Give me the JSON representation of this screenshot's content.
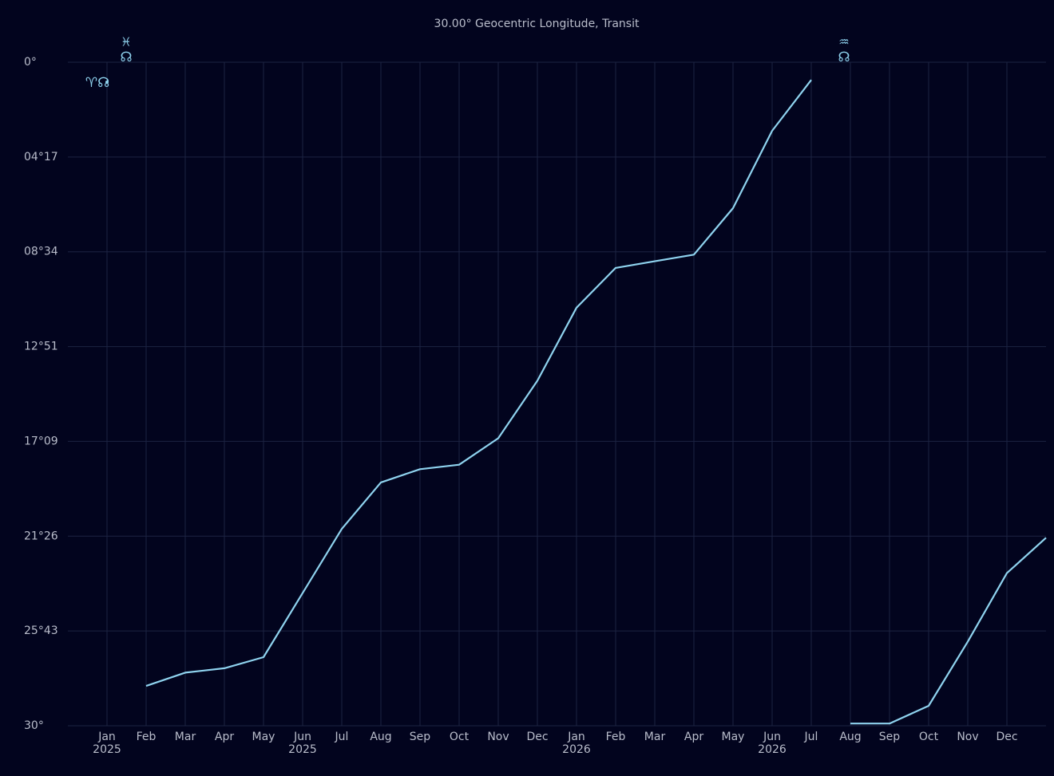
{
  "chart_data": {
    "type": "line",
    "title": "30.00° Geocentric Longitude,  Transit",
    "color": "#8fd3ef",
    "grid": true,
    "yinvert": true,
    "xlim": [
      "2024-12",
      "2027-01"
    ],
    "ylim": [
      0,
      30
    ],
    "yticks": [
      {
        "value": 0,
        "label": "0°"
      },
      {
        "value": 4.2857,
        "label": "04°17"
      },
      {
        "value": 8.5714,
        "label": "08°34"
      },
      {
        "value": 12.8571,
        "label": "12°51"
      },
      {
        "value": 17.1429,
        "label": "17°09"
      },
      {
        "value": 21.4286,
        "label": "21°26"
      },
      {
        "value": 25.7143,
        "label": "25°43"
      },
      {
        "value": 30,
        "label": "30°"
      }
    ],
    "xticks": [
      {
        "value": "2025-01",
        "label": "Jan",
        "year": "2025"
      },
      {
        "value": "2025-02",
        "label": "Feb"
      },
      {
        "value": "2025-03",
        "label": "Mar"
      },
      {
        "value": "2025-04",
        "label": "Apr"
      },
      {
        "value": "2025-05",
        "label": "May"
      },
      {
        "value": "2025-06",
        "label": "Jun",
        "year": "2025"
      },
      {
        "value": "2025-07",
        "label": "Jul"
      },
      {
        "value": "2025-08",
        "label": "Aug"
      },
      {
        "value": "2025-09",
        "label": "Sep"
      },
      {
        "value": "2025-10",
        "label": "Oct"
      },
      {
        "value": "2025-11",
        "label": "Nov"
      },
      {
        "value": "2025-12",
        "label": "Dec"
      },
      {
        "value": "2026-01",
        "label": "Jan",
        "year": "2026"
      },
      {
        "value": "2026-02",
        "label": "Feb"
      },
      {
        "value": "2026-03",
        "label": "Mar"
      },
      {
        "value": "2026-04",
        "label": "Apr"
      },
      {
        "value": "2026-05",
        "label": "May"
      },
      {
        "value": "2026-06",
        "label": "Jun",
        "year": "2026"
      },
      {
        "value": "2026-07",
        "label": "Jul"
      },
      {
        "value": "2026-08",
        "label": "Aug"
      },
      {
        "value": "2026-09",
        "label": "Sep"
      },
      {
        "value": "2026-10",
        "label": "Oct"
      },
      {
        "value": "2026-11",
        "label": "Nov"
      },
      {
        "value": "2026-12",
        "label": "Dec"
      }
    ],
    "series": [
      {
        "x": [
          "2025-01"
        ],
        "values": [
          0.9
        ]
      },
      {
        "x": [
          "2025-02",
          "2025-03",
          "2025-04",
          "2025-05",
          "2025-06",
          "2025-07",
          "2025-08",
          "2025-09",
          "2025-10",
          "2025-11",
          "2025-12",
          "2026-01",
          "2026-02",
          "2026-03",
          "2026-04",
          "2026-05",
          "2026-06",
          "2026-07"
        ],
        "values": [
          28.2,
          27.6,
          27.4,
          26.9,
          24.0,
          21.1,
          19.0,
          18.4,
          18.2,
          17.0,
          14.4,
          11.1,
          9.3,
          9.0,
          8.7,
          6.6,
          3.1,
          0.8
        ]
      },
      {
        "x": [
          "2026-08",
          "2026-09",
          "2026-10",
          "2026-11",
          "2026-12",
          "2027-01"
        ],
        "values": [
          29.9,
          29.9,
          29.1,
          26.2,
          23.1,
          21.5
        ]
      }
    ],
    "annotations": [
      "♈☊",
      "♓",
      "☊",
      "♒",
      "☊"
    ]
  }
}
